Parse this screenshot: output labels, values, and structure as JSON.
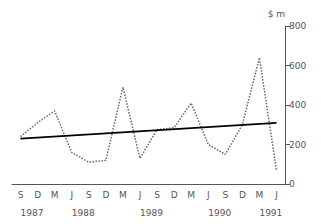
{
  "chart_data": {
    "type": "line",
    "ylabel": "$ m",
    "categories": [
      "S",
      "D",
      "M",
      "J",
      "S",
      "D",
      "M",
      "J",
      "S",
      "D",
      "M",
      "J",
      "S",
      "D",
      "M",
      "J"
    ],
    "series": [
      {
        "values": [
          240,
          310,
          370,
          160,
          110,
          120,
          490,
          130,
          275,
          285,
          410,
          200,
          150,
          300,
          640,
          70
        ],
        "color": "#666666",
        "line_style": "dotted"
      },
      {
        "values": [
          230,
          null,
          null,
          null,
          null,
          null,
          null,
          null,
          null,
          null,
          null,
          null,
          null,
          null,
          null,
          310
        ],
        "color": "#000000",
        "line_style": "solid"
      }
    ],
    "annotations": [
      {
        "text": "1987",
        "x": 0
      },
      {
        "text": "1988",
        "x": 3
      },
      {
        "text": "1989",
        "x": 7
      },
      {
        "text": "1990",
        "x": 11
      },
      {
        "text": "1991",
        "x": 14
      }
    ],
    "ylim": [
      0,
      800
    ],
    "yticks": [
      0,
      200,
      400,
      600,
      800
    ],
    "grid": false
  }
}
